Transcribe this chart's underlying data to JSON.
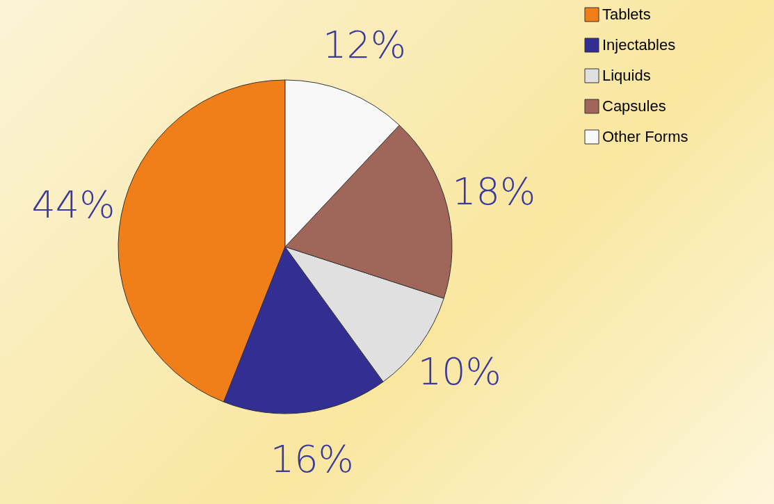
{
  "chart_data": {
    "type": "pie",
    "categories": [
      "Tablets",
      "Injectables",
      "Liquids",
      "Capsules",
      "Other Forms"
    ],
    "values": [
      44,
      16,
      10,
      18,
      12
    ],
    "value_labels": [
      "44%",
      "16%",
      "10%",
      "18%",
      "12%"
    ],
    "colors": [
      "#f07f1a",
      "#332e91",
      "#e0e0e0",
      "#a0665a",
      "#f8f8f8"
    ],
    "legend": "right"
  }
}
